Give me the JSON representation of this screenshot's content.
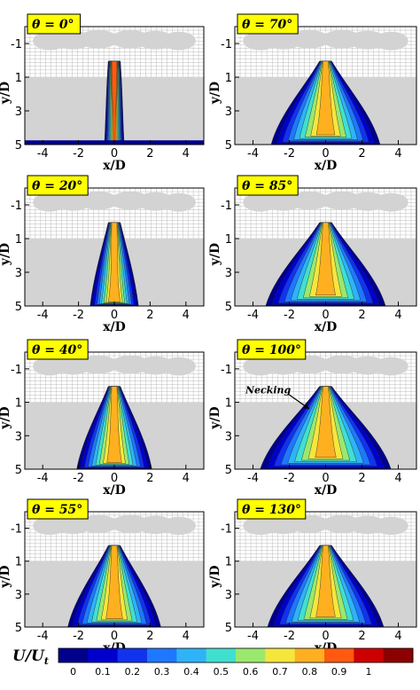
{
  "chart_data": {
    "type": "heatmap",
    "panels": [
      {
        "id": "p0",
        "label": "θ = 0°",
        "spread": 0.35,
        "peak": 1.0,
        "necking": false
      },
      {
        "id": "p70",
        "label": "θ = 70°",
        "spread": 2.8,
        "peak": 0.88,
        "necking": false
      },
      {
        "id": "p20",
        "label": "θ = 20°",
        "spread": 1.15,
        "peak": 0.92,
        "necking": false
      },
      {
        "id": "p85",
        "label": "θ = 85°",
        "spread": 3.1,
        "peak": 0.88,
        "necking": false
      },
      {
        "id": "p40",
        "label": "θ = 40°",
        "spread": 1.9,
        "peak": 0.9,
        "necking": false
      },
      {
        "id": "p100",
        "label": "θ = 100°",
        "spread": 3.4,
        "peak": 0.86,
        "necking": true
      },
      {
        "id": "p55",
        "label": "θ = 55°",
        "spread": 2.4,
        "peak": 0.88,
        "necking": false
      },
      {
        "id": "p130",
        "label": "θ = 130°",
        "spread": 3.0,
        "peak": 0.88,
        "necking": false
      }
    ],
    "xlabel": "x/D",
    "ylabel": "y/D",
    "xlim": [
      -5,
      5
    ],
    "ylim": [
      -2,
      5
    ],
    "x_ticks": [
      -4,
      -2,
      0,
      2,
      4
    ],
    "y_ticks": [
      -1,
      1,
      3,
      5
    ],
    "colorbar": {
      "label": "U/U_t",
      "label_main": "U",
      "label_den": "U",
      "label_sub": "t",
      "range": [
        0,
        1
      ],
      "tick_values": [
        0,
        0.1,
        0.2,
        0.3,
        0.4,
        0.5,
        0.6,
        0.7,
        0.8,
        0.9,
        1
      ],
      "tick_labels": [
        "0",
        "0.1",
        "0.2",
        "0.3",
        "0.4",
        "0.5",
        "0.6",
        "0.7",
        "0.8",
        "0.9",
        "1"
      ],
      "colors": [
        "#00008b",
        "#0000cd",
        "#1133ee",
        "#1e78ff",
        "#2fb3f7",
        "#40e0d0",
        "#9be86e",
        "#f5e63c",
        "#ffb020",
        "#ff5a10",
        "#cc0000",
        "#8b0000"
      ]
    },
    "annotation": {
      "panel": "p100",
      "text": "Necking"
    }
  },
  "colors": {
    "background": "#ffffff",
    "obstacle_gray": "#d3d3d3",
    "label_box": "#ffff00",
    "mesh_line": "#555555"
  }
}
